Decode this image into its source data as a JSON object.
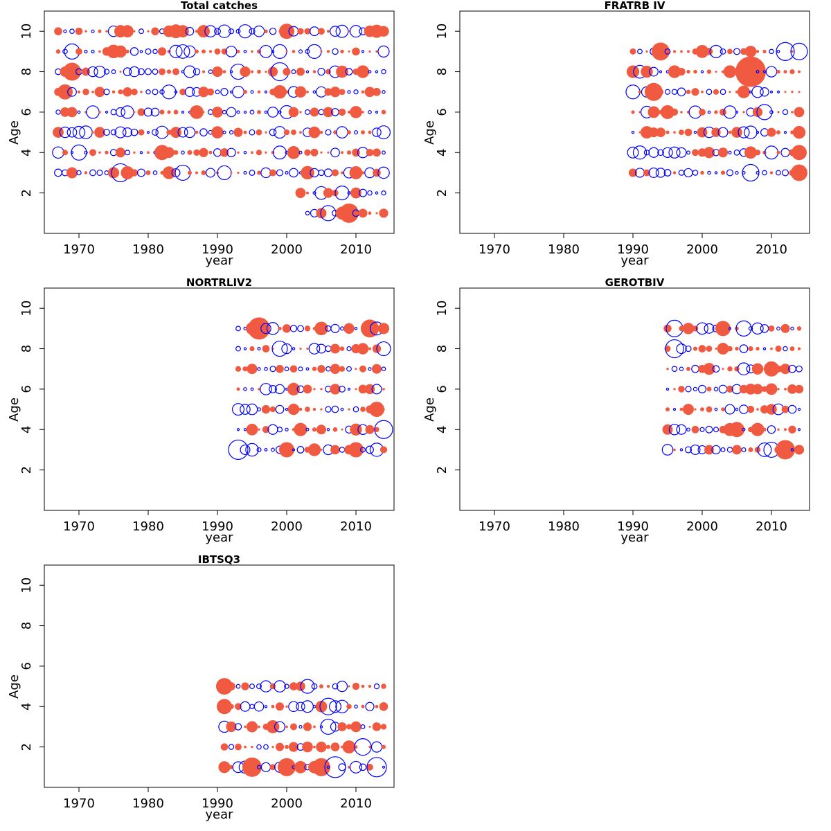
{
  "figure": {
    "colors": {
      "positive": "#f05a40",
      "negative": "#0000ff",
      "frame": "#000000"
    }
  },
  "chart_data": [
    {
      "type": "scatter",
      "title": "Total catches",
      "xlabel": "year",
      "ylabel": "Age",
      "xlim": [
        1965,
        2015.5
      ],
      "ylim": [
        0,
        11
      ],
      "xticks": [
        1970,
        1980,
        1990,
        2000,
        2010
      ],
      "yticks": [
        2,
        4,
        6,
        8,
        10
      ],
      "grid": false,
      "years": [
        1967,
        2014
      ],
      "ages": [
        3,
        4,
        5,
        6,
        7,
        8,
        9,
        10
      ],
      "extra_rows": [
        {
          "age": 2,
          "years": [
            2002,
            2014
          ]
        },
        {
          "age": 1,
          "years": [
            2003,
            2014
          ]
        }
      ],
      "markers": [
        {
          "x": 1976,
          "y": 3,
          "r": 13,
          "s": "neg"
        },
        {
          "x": 1985,
          "y": 3,
          "r": 11,
          "s": "neg"
        },
        {
          "x": 1991,
          "y": 3,
          "r": 10,
          "s": "neg"
        },
        {
          "x": 1969,
          "y": 8,
          "r": 13,
          "s": "pos"
        },
        {
          "x": 1968,
          "y": 7,
          "r": 11,
          "s": "pos"
        },
        {
          "x": 1983,
          "y": 7,
          "r": 10,
          "s": "neg"
        },
        {
          "x": 1969,
          "y": 9,
          "r": 11,
          "s": "neg"
        },
        {
          "x": 1993,
          "y": 8,
          "r": 11,
          "s": "neg"
        },
        {
          "x": 1999,
          "y": 8,
          "r": 13,
          "s": "neg"
        },
        {
          "x": 2004,
          "y": 9,
          "r": 10,
          "s": "neg"
        },
        {
          "x": 2000,
          "y": 10,
          "r": 11,
          "s": "pos"
        },
        {
          "x": 1984,
          "y": 10,
          "r": 10,
          "s": "pos"
        },
        {
          "x": 2009,
          "y": 1,
          "r": 14,
          "s": "pos"
        },
        {
          "x": 2006,
          "y": 1,
          "r": 11,
          "s": "neg"
        },
        {
          "x": 2008,
          "y": 2,
          "r": 10,
          "s": "neg"
        },
        {
          "x": 1982,
          "y": 4,
          "r": 11,
          "s": "pos"
        },
        {
          "x": 1970,
          "y": 4,
          "r": 11,
          "s": "neg"
        }
      ]
    },
    {
      "type": "scatter",
      "title": "FRATRB IV",
      "xlabel": "year",
      "ylabel": "Age",
      "xlim": [
        1965,
        2015.5
      ],
      "ylim": [
        0,
        11
      ],
      "xticks": [
        1970,
        1980,
        1990,
        2000,
        2010
      ],
      "yticks": [
        2,
        4,
        6,
        8,
        10
      ],
      "grid": false,
      "years": [
        1990,
        2014
      ],
      "ages": [
        3,
        4,
        5,
        6,
        7,
        8,
        9
      ],
      "extra_rows": [],
      "markers": [
        {
          "x": 2007,
          "y": 8,
          "r": 22,
          "s": "pos"
        },
        {
          "x": 1993,
          "y": 7,
          "r": 13,
          "s": "pos"
        },
        {
          "x": 1994,
          "y": 9,
          "r": 13,
          "s": "pos"
        },
        {
          "x": 2012,
          "y": 9,
          "r": 13,
          "s": "neg"
        },
        {
          "x": 2014,
          "y": 9,
          "r": 12,
          "s": "neg"
        },
        {
          "x": 2007,
          "y": 3,
          "r": 12,
          "s": "neg"
        },
        {
          "x": 2014,
          "y": 3,
          "r": 12,
          "s": "pos"
        },
        {
          "x": 2014,
          "y": 4,
          "r": 11,
          "s": "pos"
        },
        {
          "x": 2009,
          "y": 6,
          "r": 11,
          "s": "neg"
        },
        {
          "x": 1990,
          "y": 7,
          "r": 10,
          "s": "neg"
        }
      ]
    },
    {
      "type": "scatter",
      "title": "NORTRLIV2",
      "xlabel": "year",
      "ylabel": "Age",
      "xlim": [
        1965,
        2015.5
      ],
      "ylim": [
        0,
        11
      ],
      "xticks": [
        1970,
        1980,
        1990,
        2000,
        2010
      ],
      "yticks": [
        2,
        4,
        6,
        8,
        10
      ],
      "grid": false,
      "years": [
        1993,
        2014
      ],
      "ages": [
        3,
        4,
        5,
        6,
        7,
        8,
        9
      ],
      "extra_rows": [],
      "markers": [
        {
          "x": 1996,
          "y": 9,
          "r": 16,
          "s": "pos"
        },
        {
          "x": 2012,
          "y": 9,
          "r": 13,
          "s": "pos"
        },
        {
          "x": 1993,
          "y": 3,
          "r": 14,
          "s": "neg"
        },
        {
          "x": 2014,
          "y": 4,
          "r": 13,
          "s": "neg"
        },
        {
          "x": 2013,
          "y": 5,
          "r": 11,
          "s": "pos"
        },
        {
          "x": 2000,
          "y": 3,
          "r": 11,
          "s": "pos"
        },
        {
          "x": 2010,
          "y": 3,
          "r": 11,
          "s": "pos"
        },
        {
          "x": 1999,
          "y": 8,
          "r": 11,
          "s": "neg"
        },
        {
          "x": 2014,
          "y": 8,
          "r": 10,
          "s": "neg"
        }
      ]
    },
    {
      "type": "scatter",
      "title": "GEROTBIV",
      "xlabel": "year",
      "ylabel": "Age",
      "xlim": [
        1965,
        2015.5
      ],
      "ylim": [
        0,
        11
      ],
      "xticks": [
        1970,
        1980,
        1990,
        2000,
        2010
      ],
      "yticks": [
        2,
        4,
        6,
        8,
        10
      ],
      "grid": false,
      "years": [
        1995,
        2014
      ],
      "ages": [
        3,
        4,
        5,
        6,
        7,
        8,
        9
      ],
      "extra_rows": [],
      "markers": [
        {
          "x": 1996,
          "y": 9,
          "r": 12,
          "s": "neg"
        },
        {
          "x": 1996,
          "y": 8,
          "r": 13,
          "s": "neg"
        },
        {
          "x": 2012,
          "y": 3,
          "r": 14,
          "s": "pos"
        },
        {
          "x": 2010,
          "y": 3,
          "r": 11,
          "s": "neg"
        },
        {
          "x": 2005,
          "y": 4,
          "r": 11,
          "s": "pos"
        },
        {
          "x": 2010,
          "y": 7,
          "r": 11,
          "s": "pos"
        },
        {
          "x": 2006,
          "y": 9,
          "r": 11,
          "s": "neg"
        },
        {
          "x": 2003,
          "y": 9,
          "r": 11,
          "s": "pos"
        }
      ]
    },
    {
      "type": "scatter",
      "title": "IBTSQ3",
      "xlabel": "year",
      "ylabel": "Age",
      "xlim": [
        1965,
        2015.5
      ],
      "ylim": [
        0,
        11
      ],
      "xticks": [
        1970,
        1980,
        1990,
        2000,
        2010
      ],
      "yticks": [
        2,
        4,
        6,
        8,
        10
      ],
      "grid": false,
      "years": [
        1991,
        2014
      ],
      "ages": [
        1,
        2,
        3,
        4,
        5
      ],
      "extra_rows": [],
      "markers": [
        {
          "x": 1995,
          "y": 1,
          "r": 14,
          "s": "pos"
        },
        {
          "x": 2000,
          "y": 1,
          "r": 13,
          "s": "pos"
        },
        {
          "x": 2005,
          "y": 1,
          "r": 13,
          "s": "pos"
        },
        {
          "x": 2007,
          "y": 1,
          "r": 15,
          "s": "neg"
        },
        {
          "x": 2013,
          "y": 1,
          "r": 14,
          "s": "neg"
        },
        {
          "x": 1991,
          "y": 5,
          "r": 12,
          "s": "pos"
        },
        {
          "x": 1991,
          "y": 4,
          "r": 11,
          "s": "pos"
        },
        {
          "x": 2006,
          "y": 4,
          "r": 12,
          "s": "neg"
        },
        {
          "x": 2006,
          "y": 3,
          "r": 11,
          "s": "neg"
        },
        {
          "x": 2011,
          "y": 2,
          "r": 12,
          "s": "neg"
        },
        {
          "x": 2003,
          "y": 5,
          "r": 10,
          "s": "neg"
        }
      ]
    }
  ]
}
